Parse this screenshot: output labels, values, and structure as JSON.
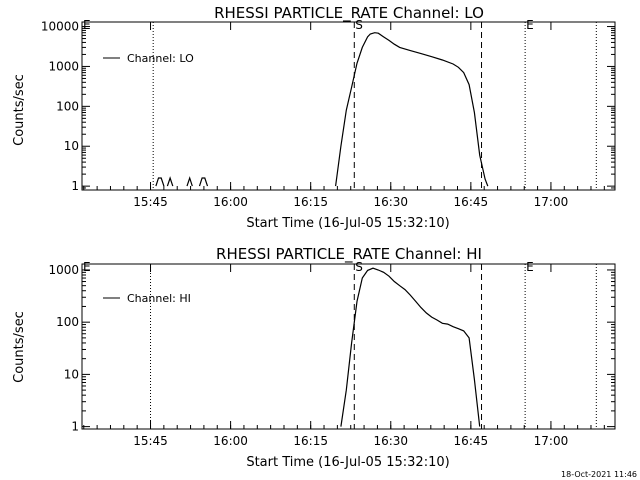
{
  "footer": {
    "timestamp": "18-Oct-2021 11:46"
  },
  "chart_data": [
    {
      "type": "line",
      "title": "RHESSI PARTICLE_RATE Channel: LO",
      "xlabel": "Start Time (16-Jul-05 15:32:10)",
      "ylabel": "Counts/sec",
      "yscale": "log",
      "ylim": [
        0.8,
        13000
      ],
      "xlim": [
        "15:32:10",
        "17:12:00"
      ],
      "x_ticks": [
        "15:45",
        "16:00",
        "16:15",
        "16:30",
        "16:45",
        "17:00"
      ],
      "y_ticks": [
        "1",
        "10",
        "100",
        "1000",
        "10000"
      ],
      "legend": {
        "position": "top-left",
        "entries": [
          "Channel: LO"
        ]
      },
      "markers": [
        {
          "label": "E",
          "time": "15:32:10",
          "style": "dotted",
          "label_shown": true
        },
        {
          "label": "",
          "time": "15:45:30",
          "style": "dotted",
          "label_shown": false
        },
        {
          "label": "S",
          "time": "16:23:10",
          "style": "dashed",
          "label_shown": true
        },
        {
          "label": "",
          "time": "16:47:00",
          "style": "dashed",
          "label_shown": false
        },
        {
          "label": "E",
          "time": "16:55:10",
          "style": "dotted",
          "label_shown": true
        },
        {
          "label": "",
          "time": "17:08:30",
          "style": "dotted",
          "label_shown": false
        }
      ],
      "series": [
        {
          "name": "Channel: LO",
          "segments": [
            {
              "x": [
                "15:46:00",
                "15:46:30",
                "15:47:00",
                "15:47:30"
              ],
              "y": [
                1,
                1.6,
                1.6,
                1
              ]
            },
            {
              "x": [
                "15:48:10",
                "15:48:40",
                "15:49:10"
              ],
              "y": [
                1,
                1.6,
                1
              ]
            },
            {
              "x": [
                "15:51:50",
                "15:52:20",
                "15:52:50"
              ],
              "y": [
                1,
                1.6,
                1
              ]
            },
            {
              "x": [
                "15:54:10",
                "15:54:40",
                "15:55:10",
                "15:55:40"
              ],
              "y": [
                1,
                1.6,
                1.6,
                1
              ]
            },
            {
              "x": [
                "16:19:40",
                "16:20:40",
                "16:21:40",
                "16:22:40",
                "16:23:40",
                "16:24:40",
                "16:25:40",
                "16:26:10",
                "16:27:00",
                "16:27:40",
                "16:28:40",
                "16:29:40",
                "16:30:40",
                "16:31:40",
                "16:33:40",
                "16:35:40",
                "16:37:40",
                "16:39:40",
                "16:41:40",
                "16:42:40",
                "16:43:40",
                "16:44:40",
                "16:45:40",
                "16:46:40",
                "16:47:40",
                "16:48:10"
              ],
              "y": [
                1,
                10,
                80,
                300,
                1200,
                3000,
                5500,
                6500,
                7000,
                6800,
                5500,
                4500,
                3600,
                3000,
                2500,
                2100,
                1750,
                1450,
                1150,
                950,
                700,
                350,
                70,
                6,
                1.5,
                1
              ]
            }
          ]
        }
      ]
    },
    {
      "type": "line",
      "title": "RHESSI PARTICLE_RATE Channel: HI",
      "xlabel": "Start Time (16-Jul-05 15:32:10)",
      "ylabel": "Counts/sec",
      "yscale": "log",
      "ylim": [
        0.9,
        1300
      ],
      "xlim": [
        "15:32:10",
        "17:12:00"
      ],
      "x_ticks": [
        "15:45",
        "16:00",
        "16:15",
        "16:30",
        "16:45",
        "17:00"
      ],
      "y_ticks": [
        "1",
        "10",
        "100",
        "1000"
      ],
      "legend": {
        "position": "top-left",
        "entries": [
          "Channel: HI"
        ]
      },
      "markers": [
        {
          "label": "E",
          "time": "15:32:10",
          "style": "dotted",
          "label_shown": true
        },
        {
          "label": "",
          "time": "15:45:00",
          "style": "dotted",
          "label_shown": false
        },
        {
          "label": "S",
          "time": "16:23:10",
          "style": "dashed",
          "label_shown": true
        },
        {
          "label": "",
          "time": "16:47:00",
          "style": "dashed",
          "label_shown": false
        },
        {
          "label": "E",
          "time": "16:55:10",
          "style": "dotted",
          "label_shown": true
        },
        {
          "label": "",
          "time": "17:08:30",
          "style": "dotted",
          "label_shown": false
        }
      ],
      "series": [
        {
          "name": "Channel: HI",
          "segments": [
            {
              "x": [
                "16:20:40",
                "16:21:40",
                "16:22:40",
                "16:23:40",
                "16:24:40",
                "16:25:40",
                "16:26:40",
                "16:27:40",
                "16:28:40",
                "16:29:40",
                "16:30:40",
                "16:31:40",
                "16:32:40",
                "16:33:40",
                "16:34:40",
                "16:35:40",
                "16:36:40",
                "16:37:40",
                "16:38:40",
                "16:39:40",
                "16:40:40",
                "16:41:40",
                "16:42:40",
                "16:43:40",
                "16:44:40",
                "16:45:40",
                "16:46:40"
              ],
              "y": [
                1,
                5,
                40,
                250,
                700,
                980,
                1080,
                1000,
                900,
                760,
                600,
                500,
                420,
                330,
                250,
                190,
                150,
                125,
                110,
                95,
                92,
                82,
                75,
                68,
                50,
                8,
                1
              ]
            }
          ]
        }
      ]
    }
  ]
}
